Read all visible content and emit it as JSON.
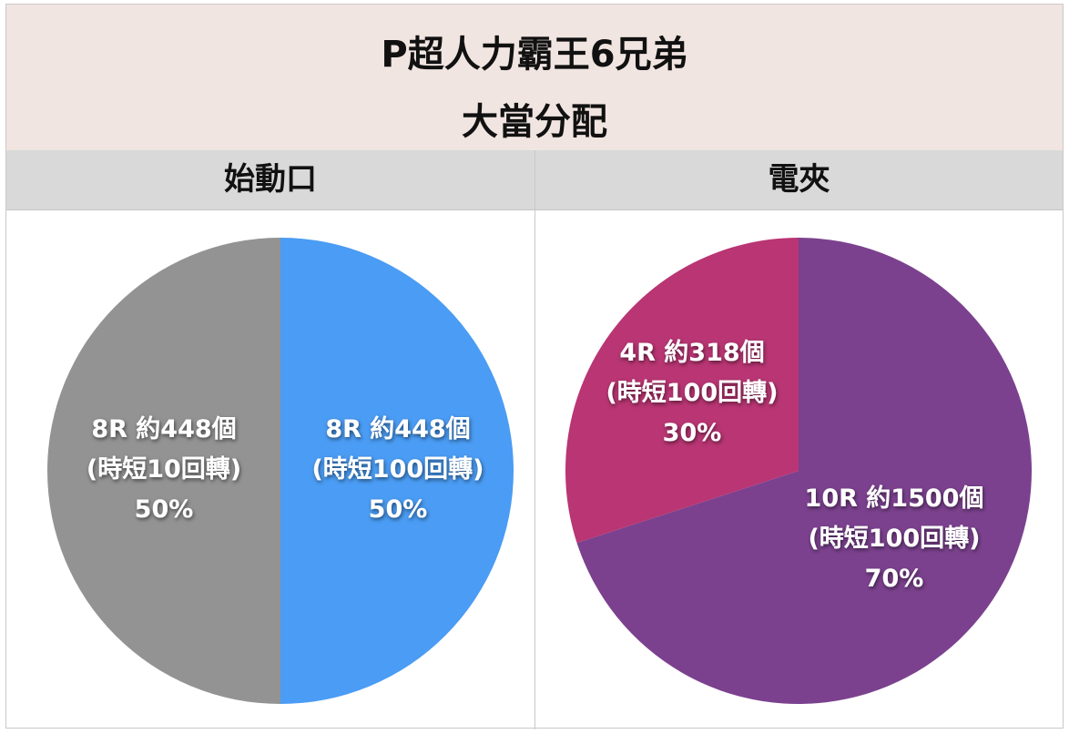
{
  "title": {
    "line1": "P超人力霸王6兄弟",
    "line2": "大當分配"
  },
  "columns": {
    "left": "始動口",
    "right": "電夾"
  },
  "chart_data": [
    {
      "type": "pie",
      "title": "始動口",
      "slices": [
        {
          "label": "8R 約448個",
          "sub": "(時短10回轉)",
          "value": 50,
          "pct": "50%",
          "color": "#4a9cf4"
        },
        {
          "label": "8R 約448個",
          "sub": "(時短100回轉)",
          "value": 50,
          "pct": "50%",
          "color": "#939393"
        }
      ]
    },
    {
      "type": "pie",
      "title": "電夾",
      "slices": [
        {
          "label": "10R 約1500個",
          "sub": "(時短100回轉)",
          "value": 70,
          "pct": "70%",
          "color": "#7b418e"
        },
        {
          "label": "4R 約318個",
          "sub": "(時短100回轉)",
          "value": 30,
          "pct": "30%",
          "color": "#b93573"
        }
      ]
    }
  ]
}
